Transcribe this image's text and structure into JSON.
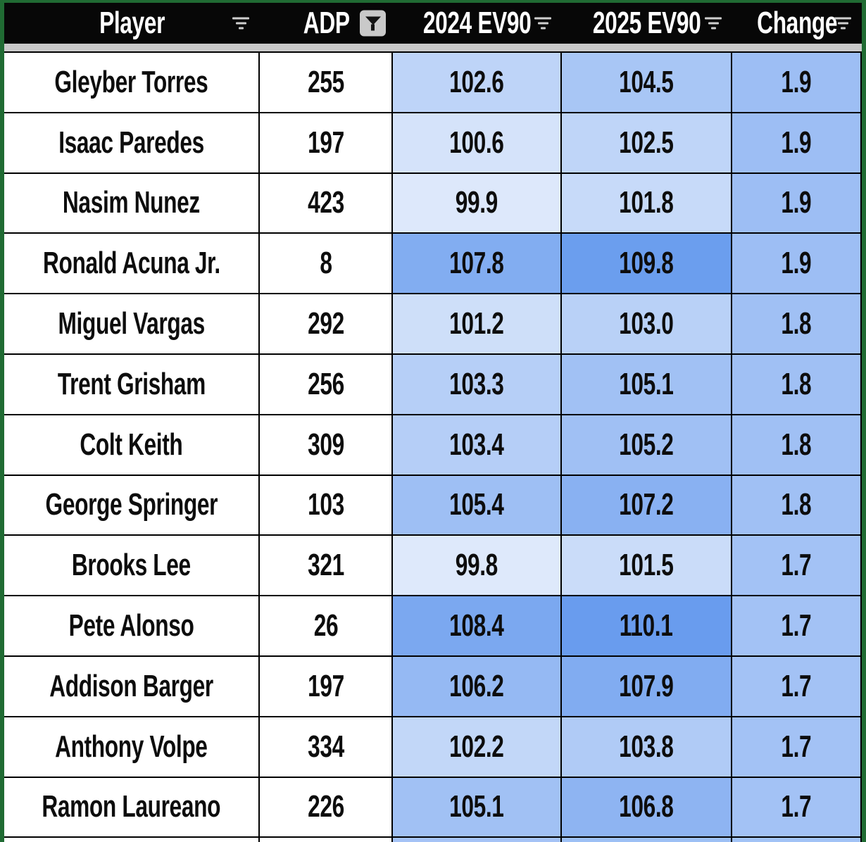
{
  "table": {
    "columns": [
      {
        "label": "Player",
        "filter": "menu"
      },
      {
        "label": "ADP",
        "filter": "active"
      },
      {
        "label": "2024 EV90",
        "filter": "menu"
      },
      {
        "label": "2025 EV90",
        "filter": "menu"
      },
      {
        "label": "Change",
        "filter": "menu"
      }
    ],
    "rows": [
      {
        "player": "Gleyber Torres",
        "adp": "255",
        "ev2024": 102.6,
        "ev2025": 104.5,
        "change": 1.9
      },
      {
        "player": "Isaac Paredes",
        "adp": "197",
        "ev2024": 100.6,
        "ev2025": 102.5,
        "change": 1.9
      },
      {
        "player": "Nasim Nunez",
        "adp": "423",
        "ev2024": 99.9,
        "ev2025": 101.8,
        "change": 1.9
      },
      {
        "player": "Ronald Acuna Jr.",
        "adp": "8",
        "ev2024": 107.8,
        "ev2025": 109.8,
        "change": 1.9
      },
      {
        "player": "Miguel Vargas",
        "adp": "292",
        "ev2024": 101.2,
        "ev2025": 103.0,
        "change": 1.8
      },
      {
        "player": "Trent Grisham",
        "adp": "256",
        "ev2024": 103.3,
        "ev2025": 105.1,
        "change": 1.8
      },
      {
        "player": "Colt Keith",
        "adp": "309",
        "ev2024": 103.4,
        "ev2025": 105.2,
        "change": 1.8
      },
      {
        "player": "George Springer",
        "adp": "103",
        "ev2024": 105.4,
        "ev2025": 107.2,
        "change": 1.8
      },
      {
        "player": "Brooks Lee",
        "adp": "321",
        "ev2024": 99.8,
        "ev2025": 101.5,
        "change": 1.7
      },
      {
        "player": "Pete Alonso",
        "adp": "26",
        "ev2024": 108.4,
        "ev2025": 110.1,
        "change": 1.7
      },
      {
        "player": "Addison Barger",
        "adp": "197",
        "ev2024": 106.2,
        "ev2025": 107.9,
        "change": 1.7
      },
      {
        "player": "Anthony Volpe",
        "adp": "334",
        "ev2024": 102.2,
        "ev2025": 103.8,
        "change": 1.7
      },
      {
        "player": "Ramon Laureano",
        "adp": "226",
        "ev2024": 105.1,
        "ev2025": 106.8,
        "change": 1.7
      }
    ],
    "partial_row_colors": {
      "player": "#ffffff",
      "adp": "#ffffff",
      "ev2024": "#a5c3f6",
      "ev2025": "#9dc0f5",
      "change": "#a2c3f6"
    },
    "color_scale": {
      "low_color": "#ffffff",
      "high_color": "#699cee",
      "ev_domain": [
        96.9,
        110.0
      ],
      "change_domain": [
        -1.37,
        3.63
      ]
    },
    "colors": {
      "frame_green": "#206b33",
      "header_bg": "#070707",
      "header_text": "#ffffff",
      "frozen_strip": "#c9c9c9",
      "grid_line": "#000000"
    }
  }
}
